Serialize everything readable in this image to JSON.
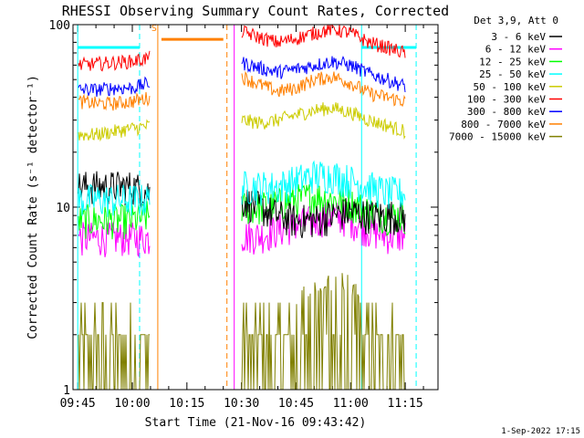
{
  "chart_data": {
    "type": "line",
    "title": "RHESSI Observing Summary Count Rates, Corrected",
    "xlabel": "Start Time (21-Nov-16 09:43:42)",
    "ylabel": "Corrected Count Rate (s⁻¹ detector⁻¹)",
    "y_scale": "log",
    "ylim": [
      1,
      100
    ],
    "xlim": [
      "09:43:42",
      "11:24:00"
    ],
    "x_ticks": [
      "09:45",
      "10:00",
      "10:15",
      "10:30",
      "10:45",
      "11:00",
      "11:15"
    ],
    "y_ticks": [
      "1",
      "10",
      "100"
    ],
    "grid": false,
    "legend_position": "top-right",
    "legend_header": "Det 3,9, Att 0",
    "data_gaps": [
      [
        "10:07",
        "10:28"
      ]
    ],
    "flag_mark": "S",
    "x_sample": [
      "09:45",
      "09:50",
      "09:55",
      "10:00",
      "10:05",
      "10:07",
      "10:28",
      "10:30",
      "10:35",
      "10:40",
      "10:45",
      "10:50",
      "10:55",
      "11:00",
      "11:05",
      "11:10",
      "11:15"
    ],
    "series": [
      {
        "name": "3 - 6 keV",
        "color": "#000000",
        "values": [
          13,
          13,
          13,
          13,
          12,
          null,
          null,
          11,
          10,
          9,
          8.5,
          8.5,
          9,
          9.5,
          9,
          9,
          9
        ]
      },
      {
        "name": "6 - 12 keV",
        "color": "#ff00ff",
        "values": [
          6.8,
          6.8,
          6.8,
          6.8,
          6.8,
          null,
          null,
          7,
          7,
          7.5,
          8,
          8.5,
          9,
          8.5,
          7.5,
          7,
          7
        ]
      },
      {
        "name": "12 - 25 keV",
        "color": "#00ff00",
        "values": [
          8.5,
          8.5,
          8.5,
          8.5,
          9,
          null,
          null,
          10,
          10,
          10.5,
          11,
          11.5,
          11,
          10.5,
          9.5,
          9,
          9
        ]
      },
      {
        "name": "25 - 50 keV",
        "color": "#00ffff",
        "values": [
          11,
          11,
          11,
          11,
          11,
          null,
          null,
          13,
          13,
          13,
          14,
          15,
          15,
          14,
          13,
          12,
          12
        ]
      },
      {
        "name": "50 - 100 keV",
        "color": "#cccc00",
        "values": [
          25,
          25,
          26,
          27,
          28,
          null,
          null,
          30,
          29,
          30,
          32,
          34,
          35,
          33,
          30,
          28,
          26
        ]
      },
      {
        "name": "100 - 300 keV",
        "color": "#ff0000",
        "values": [
          60,
          61,
          62,
          63,
          66,
          null,
          null,
          92,
          85,
          80,
          84,
          90,
          95,
          90,
          80,
          75,
          70
        ]
      },
      {
        "name": "300 - 800 keV",
        "color": "#0000ff",
        "values": [
          44,
          44,
          45,
          45,
          48,
          null,
          null,
          62,
          58,
          55,
          57,
          60,
          63,
          60,
          54,
          50,
          46
        ]
      },
      {
        "name": "800 - 7000 keV",
        "color": "#ff8000",
        "values": [
          38,
          37,
          37,
          38,
          40,
          null,
          null,
          52,
          47,
          43,
          45,
          50,
          52,
          48,
          42,
          40,
          38
        ]
      },
      {
        "name": "7000 - 15000 keV",
        "color": "#808000",
        "values": [
          1.8,
          1.8,
          1.8,
          1.8,
          1.8,
          null,
          null,
          1.8,
          1.8,
          2,
          2.5,
          3,
          3.5,
          3,
          2,
          1.8,
          1.8
        ]
      }
    ],
    "annotation_lines": [
      {
        "time": "09:45",
        "style": "solid",
        "color": "#00ffff"
      },
      {
        "time": "10:02",
        "style": "dashed",
        "color": "#00ffff"
      },
      {
        "time": "10:07",
        "style": "solid",
        "color": "#ff8000"
      },
      {
        "time": "10:26",
        "style": "dashed",
        "color": "#ff8000"
      },
      {
        "time": "10:28",
        "style": "solid",
        "color": "#ff00ff"
      },
      {
        "time": "11:03",
        "style": "solid",
        "color": "#00ffff"
      },
      {
        "time": "11:18",
        "style": "dashed",
        "color": "#00ffff"
      }
    ],
    "flag_bars": [
      {
        "start": "09:45",
        "end": "10:02",
        "level": 75,
        "color": "#00ffff"
      },
      {
        "start": "10:08",
        "end": "10:25",
        "level": 83,
        "color": "#ff8000"
      },
      {
        "start": "11:03",
        "end": "11:18",
        "level": 75,
        "color": "#00ffff"
      }
    ]
  },
  "footer": {
    "timestamp": "1-Sep-2022 17:15"
  }
}
